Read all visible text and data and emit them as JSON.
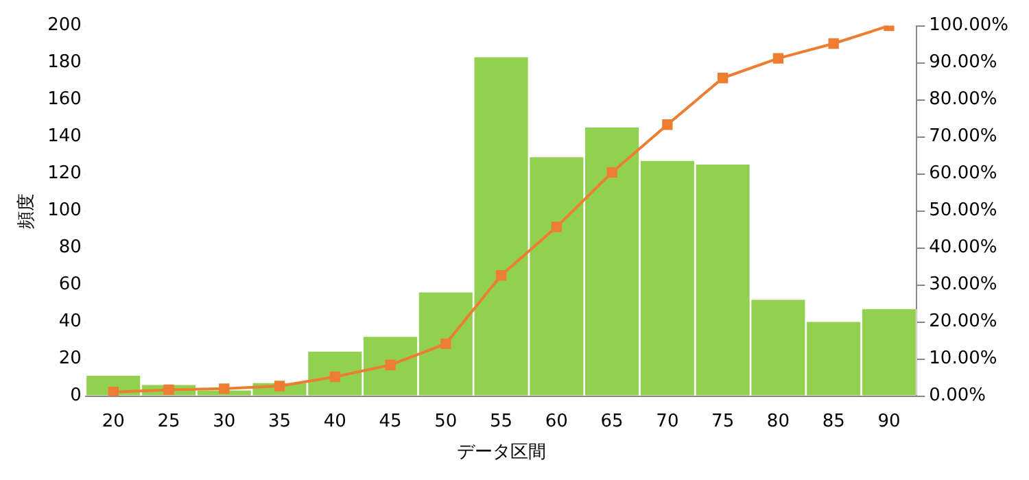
{
  "chart_data": {
    "type": "bar",
    "xlabel": "データ区間",
    "ylabel": "頻度",
    "categories": [
      "20",
      "25",
      "30",
      "35",
      "40",
      "45",
      "50",
      "55",
      "60",
      "65",
      "70",
      "75",
      "80",
      "85",
      "90"
    ],
    "series": [
      {
        "color": "#92d050",
        "values": [
          11,
          6,
          3,
          7,
          24,
          32,
          56,
          183,
          129,
          145,
          127,
          125,
          52,
          40,
          47
        ]
      },
      {
        "type": "line",
        "axis": "y2",
        "color": "#ed7d31",
        "marker": "square",
        "values": [
          1.1,
          1.7,
          2.0,
          2.7,
          5.2,
          8.4,
          14.1,
          32.6,
          45.7,
          60.4,
          73.3,
          85.9,
          91.2,
          95.2,
          100
        ]
      }
    ],
    "ylim": [
      0,
      200
    ],
    "yticks": [
      0,
      20,
      40,
      60,
      80,
      100,
      120,
      140,
      160,
      180,
      200
    ],
    "y2lim": [
      0,
      100
    ],
    "y2ticks": [
      {
        "value": 0,
        "label": "0.00%"
      },
      {
        "value": 10,
        "label": "10.00%"
      },
      {
        "value": 20,
        "label": "20.00%"
      },
      {
        "value": 30,
        "label": "30.00%"
      },
      {
        "value": 40,
        "label": "40.00%"
      },
      {
        "value": 50,
        "label": "50.00%"
      },
      {
        "value": 60,
        "label": "60.00%"
      },
      {
        "value": 70,
        "label": "70.00%"
      },
      {
        "value": 80,
        "label": "80.00%"
      },
      {
        "value": 90,
        "label": "90.00%"
      },
      {
        "value": 100,
        "label": "100.00%"
      }
    ],
    "grid": false,
    "legend": false
  }
}
